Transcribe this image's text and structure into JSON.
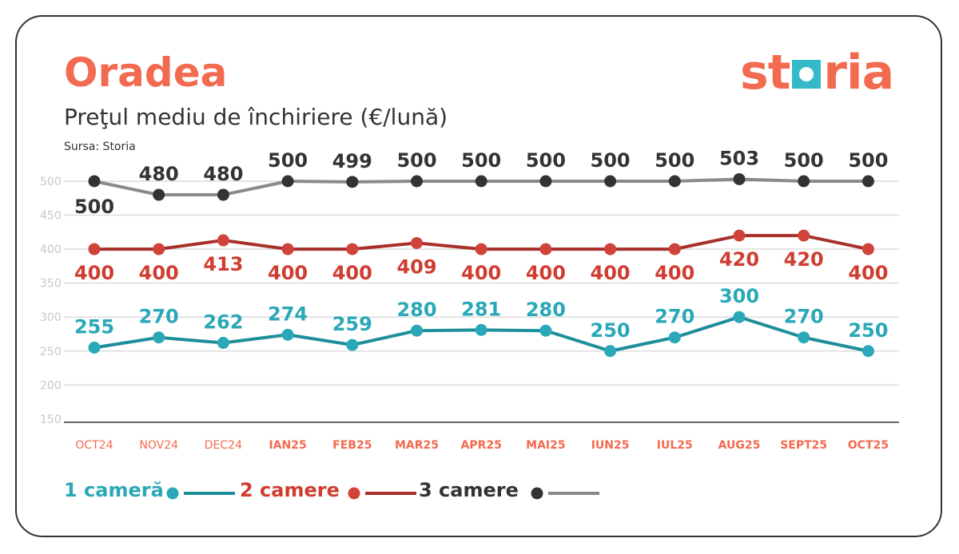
{
  "header": {
    "title": "Oradea",
    "subtitle": "Preţul mediu de închiriere (€/lună)",
    "source": "Sursa: Storia",
    "logo_text": "storia"
  },
  "chart_data": {
    "type": "line",
    "title": "Preţul mediu de închiriere (€/lună)",
    "categories": [
      "OCT24",
      "NOV24",
      "DEC24",
      "IAN25",
      "FEB25",
      "MAR25",
      "APR25",
      "MAI25",
      "IUN25",
      "IUL25",
      "AUG25",
      "SEPT25",
      "OCT25"
    ],
    "yticks": [
      150,
      200,
      250,
      300,
      350,
      400,
      450,
      500
    ],
    "ylim": [
      150,
      500
    ],
    "grid": true,
    "legend_placement": "bottom-left",
    "series": [
      {
        "name": "1 cameră",
        "color": "#1e8e9b",
        "label_color": "#2aa8b7",
        "dot_color": "#2aa8b7",
        "values": [
          255,
          270,
          262,
          274,
          259,
          280,
          281,
          280,
          250,
          270,
          300,
          270,
          250
        ]
      },
      {
        "name": "2 camere",
        "color": "#a8302a",
        "label_color": "#cf3d31",
        "dot_color": "#d0433a",
        "values": [
          400,
          400,
          413,
          400,
          400,
          409,
          400,
          400,
          400,
          400,
          420,
          420,
          400
        ]
      },
      {
        "name": "3 camere",
        "color": "#8a8a8c",
        "label_color": "#333333",
        "dot_color": "#333333",
        "values": [
          500,
          480,
          480,
          500,
          499,
          500,
          500,
          500,
          500,
          500,
          503,
          500,
          500
        ]
      }
    ]
  }
}
